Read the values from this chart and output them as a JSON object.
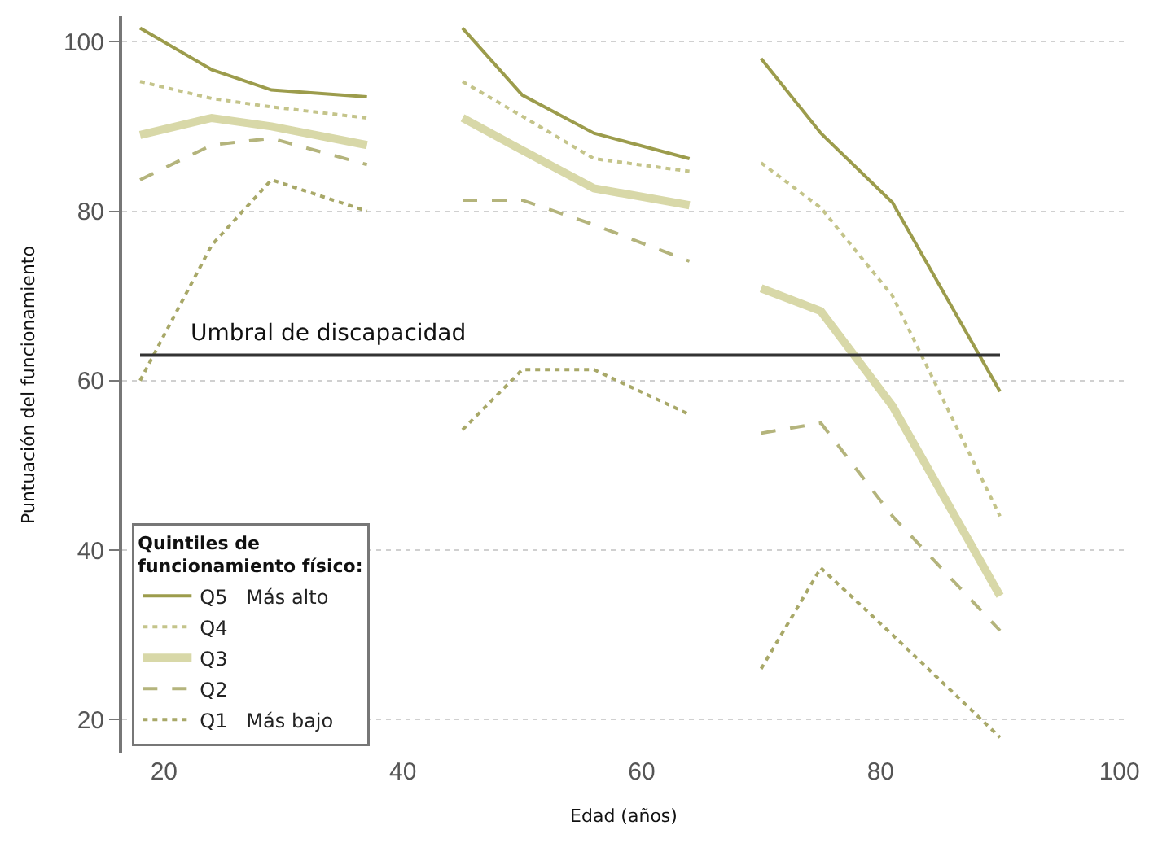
{
  "chart_data": {
    "type": "line",
    "xlabel": "Edad (años)",
    "ylabel": "Puntuación del funcionamiento",
    "legend_title": "Quintiles de\nfuncionamiento físico:",
    "x": [
      18,
      24,
      29,
      37,
      41,
      45,
      50,
      56,
      64,
      67,
      70,
      75,
      81,
      90
    ],
    "series": [
      {
        "name": "Q5   Más alto",
        "color": "#9c9c4c",
        "line_style": "solid",
        "values": [
          101.6,
          96.7,
          94.3,
          93.5,
          null,
          101.6,
          93.7,
          89.2,
          86.2,
          null,
          98,
          89.2,
          81,
          58.7
        ]
      },
      {
        "name": "Q4",
        "color": "#c4c48a",
        "line_style": "dotted",
        "values": [
          95.3,
          93.3,
          92.3,
          91,
          null,
          95.3,
          91.2,
          86.2,
          84.7,
          null,
          85.7,
          80.4,
          70,
          44
        ]
      },
      {
        "name": "Q3",
        "color": "#d8d8a8",
        "line_style": "solid",
        "values": [
          89,
          91,
          90,
          87.8,
          null,
          91,
          87.2,
          82.7,
          80.7,
          null,
          70.9,
          68.2,
          57,
          34.6
        ]
      },
      {
        "name": "Q2",
        "color": "#b4b47c",
        "line_style": "dashed",
        "values": [
          83.7,
          87.8,
          88.6,
          85.5,
          null,
          81.3,
          81.3,
          78.4,
          74.1,
          null,
          53.8,
          55,
          44,
          30.5
        ]
      },
      {
        "name": "Q1   Más bajo",
        "color": "#a8a868",
        "line_style": "dotted",
        "values": [
          60,
          76,
          83.7,
          80,
          null,
          54.2,
          61.3,
          61.3,
          56,
          null,
          26,
          37.9,
          30,
          17.9
        ]
      }
    ],
    "ref_lines": [
      {
        "axis": "y",
        "value": 63,
        "label": "Umbral de discapacidad",
        "color": "#333333"
      }
    ],
    "xlim": [
      16.5,
      100.5
    ],
    "ylim": [
      16,
      103
    ],
    "xticks": [
      20,
      40,
      60,
      80,
      100
    ],
    "yticks": [
      20,
      40,
      60,
      80,
      100
    ],
    "grid": "y",
    "legend": "bottom left",
    "marker": "none"
  }
}
